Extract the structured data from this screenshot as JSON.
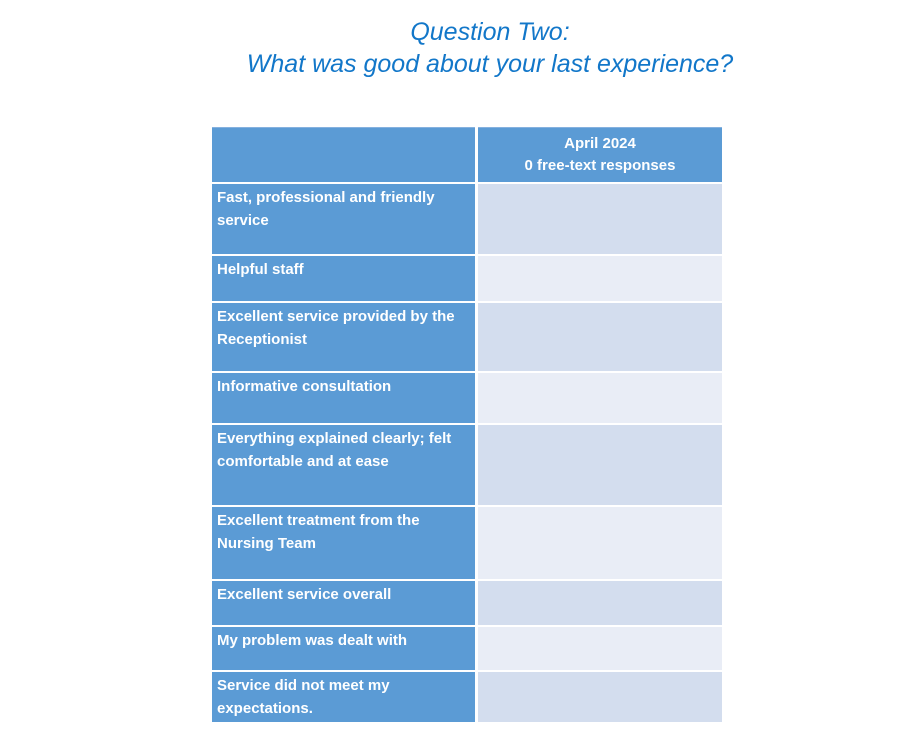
{
  "title": {
    "line1": "Question Two:",
    "line2": "What was good about your last experience?",
    "color": "#1277C9"
  },
  "table": {
    "header": {
      "left_label": "",
      "right_line1": "April 2024",
      "right_line2": "0 free-text responses"
    },
    "rows": [
      {
        "label": "Fast, professional and friendly service",
        "value": ""
      },
      {
        "label": "Helpful staff",
        "value": ""
      },
      {
        "label": "Excellent service provided by the Receptionist",
        "value": ""
      },
      {
        "label": "Informative consultation",
        "value": ""
      },
      {
        "label": "Everything explained clearly; felt comfortable and at ease",
        "value": ""
      },
      {
        "label": "Excellent treatment from the Nursing Team",
        "value": ""
      },
      {
        "label": "Excellent service overall",
        "value": ""
      },
      {
        "label": "My problem was dealt with",
        "value": ""
      },
      {
        "label": "Service did not meet my expectations.",
        "value": ""
      }
    ],
    "colors": {
      "header_blue": "#5B9BD5",
      "band_dark": "#D3DDEE",
      "band_light": "#E9EDF6"
    }
  }
}
